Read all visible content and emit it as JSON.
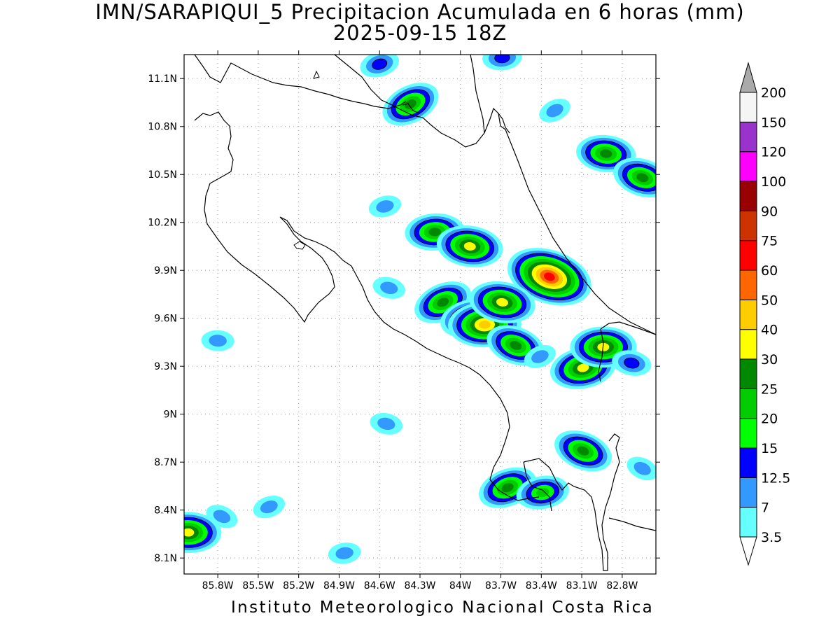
{
  "title": "IMN/SARAPIQUI_5 Precipitacion Acumulada en 6 horas (mm)",
  "subtitle": "2025-09-15 18Z",
  "footer": "Instituto Meteorologico Nacional Costa Rica",
  "map": {
    "lon_range": [
      -86.05,
      -82.55
    ],
    "lat_range": [
      8.0,
      11.25
    ],
    "lon_ticks": [
      {
        "value": -85.8,
        "label": "85.8W"
      },
      {
        "value": -85.5,
        "label": "85.5W"
      },
      {
        "value": -85.2,
        "label": "85.2W"
      },
      {
        "value": -84.9,
        "label": "84.9W"
      },
      {
        "value": -84.6,
        "label": "84.6W"
      },
      {
        "value": -84.3,
        "label": "84.3W"
      },
      {
        "value": -84.0,
        "label": "84W"
      },
      {
        "value": -83.7,
        "label": "83.7W"
      },
      {
        "value": -83.4,
        "label": "83.4W"
      },
      {
        "value": -83.1,
        "label": "83.1W"
      },
      {
        "value": -82.8,
        "label": "82.8W"
      }
    ],
    "lat_ticks": [
      {
        "value": 11.1,
        "label": "11.1N"
      },
      {
        "value": 10.8,
        "label": "10.8N"
      },
      {
        "value": 10.5,
        "label": "10.5N"
      },
      {
        "value": 10.2,
        "label": "10.2N"
      },
      {
        "value": 9.9,
        "label": "9.9N"
      },
      {
        "value": 9.6,
        "label": "9.6N"
      },
      {
        "value": 9.3,
        "label": "9.3N"
      },
      {
        "value": 9.0,
        "label": "9N"
      },
      {
        "value": 8.7,
        "label": "8.7N"
      },
      {
        "value": 8.4,
        "label": "8.4N"
      },
      {
        "value": 8.1,
        "label": "8.1N"
      }
    ],
    "grid": "dotted"
  },
  "colorbar": {
    "levels": [
      {
        "label": "3.5",
        "color": "#66ffff"
      },
      {
        "label": "7",
        "color": "#3399ff"
      },
      {
        "label": "12.5",
        "color": "#0000ff"
      },
      {
        "label": "15",
        "color": "#00ff00"
      },
      {
        "label": "20",
        "color": "#00cc00"
      },
      {
        "label": "25",
        "color": "#008800"
      },
      {
        "label": "30",
        "color": "#ffff00"
      },
      {
        "label": "40",
        "color": "#ffcc00"
      },
      {
        "label": "50",
        "color": "#ff6600"
      },
      {
        "label": "60",
        "color": "#ff0000"
      },
      {
        "label": "75",
        "color": "#cc3300"
      },
      {
        "label": "90",
        "color": "#990000"
      },
      {
        "label": "100",
        "color": "#ff00ff"
      },
      {
        "label": "120",
        "color": "#9933cc"
      },
      {
        "label": "150",
        "color": "#f5f5f5"
      },
      {
        "label": "200",
        "color": "#aaaaaa"
      }
    ]
  },
  "precip_cells": [
    {
      "lon": -84.37,
      "lat": 10.94,
      "max": 25
    },
    {
      "lon": -84.6,
      "lat": 11.19,
      "max": 12.5
    },
    {
      "lon": -83.69,
      "lat": 11.23,
      "max": 12.5
    },
    {
      "lon": -82.92,
      "lat": 10.63,
      "max": 25
    },
    {
      "lon": -82.65,
      "lat": 10.48,
      "max": 25
    },
    {
      "lon": -83.3,
      "lat": 10.9,
      "max": 7
    },
    {
      "lon": -84.56,
      "lat": 10.3,
      "max": 7
    },
    {
      "lon": -84.19,
      "lat": 10.14,
      "max": 25
    },
    {
      "lon": -83.93,
      "lat": 10.05,
      "max": 30
    },
    {
      "lon": -83.34,
      "lat": 9.86,
      "max": 60
    },
    {
      "lon": -84.13,
      "lat": 9.7,
      "max": 25
    },
    {
      "lon": -83.93,
      "lat": 9.6,
      "max": 25
    },
    {
      "lon": -83.82,
      "lat": 9.56,
      "max": 40
    },
    {
      "lon": -83.69,
      "lat": 9.7,
      "max": 30
    },
    {
      "lon": -83.59,
      "lat": 9.43,
      "max": 25
    },
    {
      "lon": -83.41,
      "lat": 9.36,
      "max": 7
    },
    {
      "lon": -83.09,
      "lat": 9.29,
      "max": 30
    },
    {
      "lon": -82.94,
      "lat": 9.42,
      "max": 30
    },
    {
      "lon": -82.73,
      "lat": 9.32,
      "max": 12.5
    },
    {
      "lon": -83.09,
      "lat": 8.77,
      "max": 25
    },
    {
      "lon": -83.65,
      "lat": 8.54,
      "max": 25
    },
    {
      "lon": -83.39,
      "lat": 8.51,
      "max": 20
    },
    {
      "lon": -86.02,
      "lat": 8.26,
      "max": 30
    },
    {
      "lon": -84.55,
      "lat": 8.94,
      "max": 7
    },
    {
      "lon": -85.77,
      "lat": 8.36,
      "max": 7
    },
    {
      "lon": -85.42,
      "lat": 8.42,
      "max": 7
    },
    {
      "lon": -84.86,
      "lat": 8.13,
      "max": 7
    },
    {
      "lon": -85.8,
      "lat": 9.46,
      "max": 7
    },
    {
      "lon": -84.53,
      "lat": 9.79,
      "max": 7
    },
    {
      "lon": -82.65,
      "lat": 8.66,
      "max": 7
    }
  ]
}
